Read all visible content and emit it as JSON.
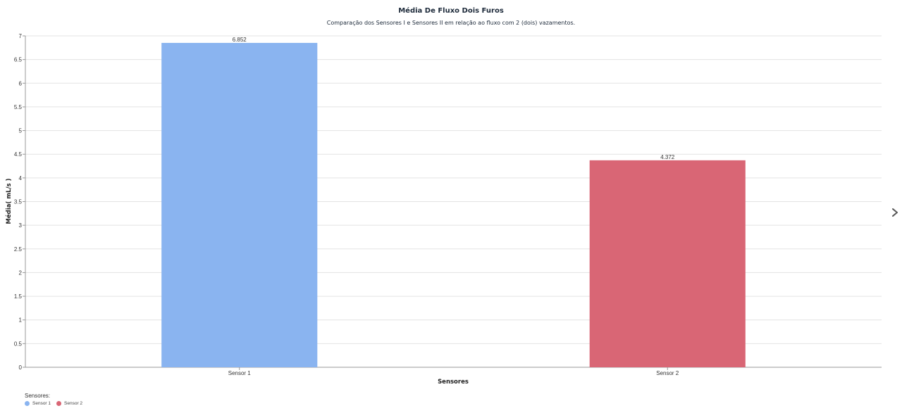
{
  "chart_data": {
    "type": "bar",
    "title": "Média De Fluxo Dois Furos",
    "subtitle": "Comparação dos Sensores I e Sensores II em relação ao fluxo com 2 (dois) vazamentos.",
    "xlabel": "Sensores",
    "ylabel": "Média( mL/s )",
    "ylim": [
      0,
      7
    ],
    "yticks": [
      "0",
      "0.5",
      "1",
      "1.5",
      "2",
      "2.5",
      "3",
      "3.5",
      "4",
      "4.5",
      "5",
      "5.5",
      "6",
      "6.5",
      "7"
    ],
    "categories": [
      "Sensor 1",
      "Sensor 2"
    ],
    "values": [
      6.852,
      4.372
    ],
    "data_labels": [
      "6.852",
      "4.372"
    ],
    "colors": [
      "#8ab4f0",
      "#d96675"
    ],
    "grid": true
  },
  "legend": {
    "title": "Sensores:",
    "position": "bottom-left",
    "items": [
      {
        "label": "Sensor 1",
        "color": "#8ab4f0"
      },
      {
        "label": "Sensor 2",
        "color": "#d96675"
      }
    ]
  },
  "nav": {
    "next_icon": "chevron-right-icon"
  }
}
